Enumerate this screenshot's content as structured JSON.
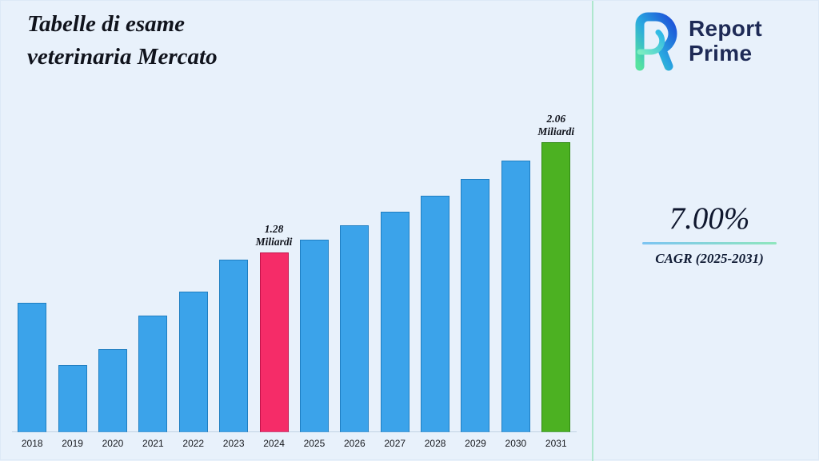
{
  "title": {
    "line1": "Tabelle di esame",
    "line2": "veterinaria Mercato"
  },
  "brand": {
    "line1": "Report",
    "line2": "Prime"
  },
  "stats": {
    "cagr_value": "7.00%",
    "cagr_label": "CAGR (2025-2031)"
  },
  "chart_data": {
    "type": "bar",
    "title": "Tabelle di esame veterinaria Mercato",
    "unit": "Miliardi",
    "categories": [
      "2018",
      "2019",
      "2020",
      "2021",
      "2022",
      "2023",
      "2024",
      "2025",
      "2026",
      "2027",
      "2028",
      "2029",
      "2030",
      "2031"
    ],
    "values": [
      0.92,
      0.48,
      0.59,
      0.83,
      1.0,
      1.23,
      1.28,
      1.37,
      1.47,
      1.57,
      1.68,
      1.8,
      1.93,
      2.06
    ],
    "bar_color": "#3BA3EA",
    "bar_border_color": "#1E7EC2",
    "highlighted_bars": [
      {
        "year": "2024",
        "value_label": "1.28",
        "unit_label": "Miliardi",
        "color": "#F52C68",
        "border_color": "#C2134A"
      },
      {
        "year": "2031",
        "value_label": "2.06",
        "unit_label": "Miliardi",
        "color": "#4CB122",
        "border_color": "#2F8A12"
      }
    ],
    "xlabel": "",
    "ylabel": "",
    "ylim": [
      0,
      2.2
    ],
    "grid": false,
    "legend": false
  }
}
